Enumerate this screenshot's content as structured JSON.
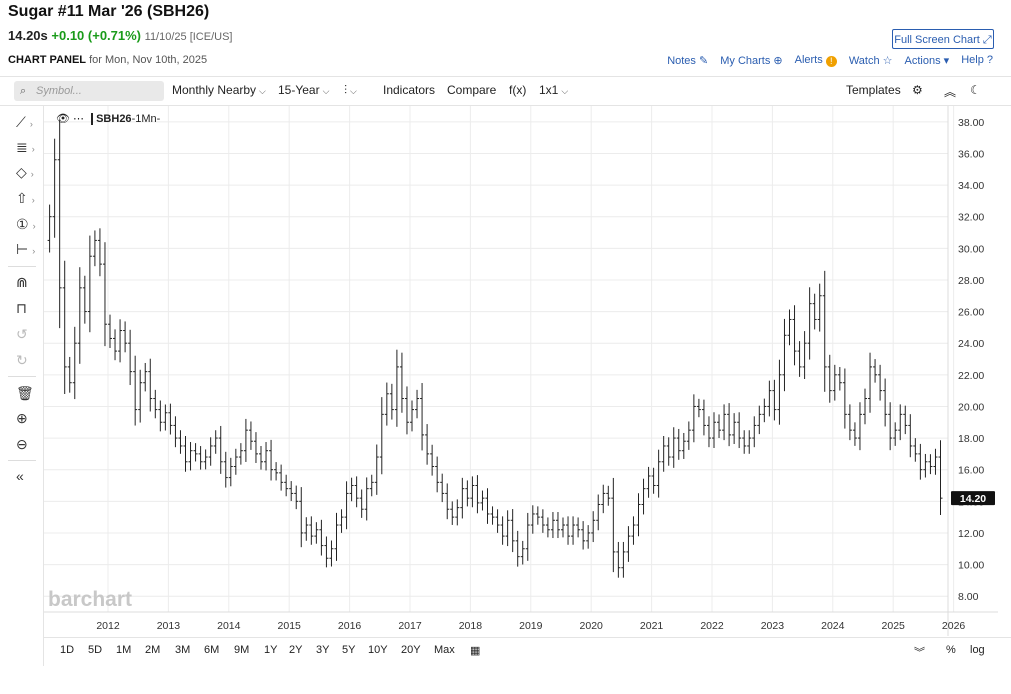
{
  "header": {
    "title": "Sugar #11 Mar '26 (SBH26)",
    "price": "14.20s",
    "change": "+0.10 (+0.71%)",
    "meta": "11/10/25 [ICE/US]",
    "fullscreen_label": "Full Screen Chart ⤢",
    "panel_label": "CHART PANEL",
    "panel_date": "for Mon, Nov 10th, 2025"
  },
  "links": [
    {
      "label": "Notes",
      "icon": "✎"
    },
    {
      "label": "My Charts",
      "icon": "⊕"
    },
    {
      "label": "Alerts",
      "icon": "!"
    },
    {
      "label": "Watch",
      "icon": "☆"
    },
    {
      "label": "Actions",
      "icon": "▾"
    },
    {
      "label": "Help",
      "icon": "?"
    }
  ],
  "toolbar": {
    "search_placeholder": "Symbol...",
    "interval": "Monthly Nearby",
    "period": "15-Year",
    "bar_type_icon": "ohlc-bars-icon",
    "indicators": "Indicators",
    "compare": "Compare",
    "fx": "f(x)",
    "layout": "1x1",
    "templates": "Templates"
  },
  "legend": {
    "symbol": "SBH26",
    "interval": "-1Mn-"
  },
  "logo": "barchart",
  "ranges": [
    "1D",
    "5D",
    "1M",
    "2M",
    "3M",
    "6M",
    "9M",
    "1Y",
    "2Y",
    "3Y",
    "5Y",
    "10Y",
    "20Y",
    "Max"
  ],
  "bottom_right": {
    "pct": "%",
    "log": "log"
  },
  "colors": {
    "bar": "#222222",
    "grid": "#ececec",
    "accent": "#2a5db0",
    "up": "#1a9b1a"
  },
  "chart_data": {
    "type": "ohlc",
    "interval": "monthly",
    "ylim": [
      7,
      39
    ],
    "y_ticks": [
      "38.00",
      "36.00",
      "34.00",
      "32.00",
      "30.00",
      "28.00",
      "26.00",
      "24.00",
      "22.00",
      "20.00",
      "18.00",
      "16.00",
      "14.00",
      "12.00",
      "10.00",
      "8.00"
    ],
    "x_ticks": [
      "2012",
      "2013",
      "2014",
      "2015",
      "2016",
      "2017",
      "2018",
      "2019",
      "2020",
      "2021",
      "2022",
      "2023",
      "2024",
      "2025",
      "2026"
    ],
    "x_start": "2011-01",
    "last_price_label": "14.20",
    "closes": [
      32.0,
      35.6,
      27.5,
      22.5,
      21.5,
      24.0,
      27.5,
      26.0,
      29.5,
      30.5,
      29.0,
      25.2,
      24.3,
      23.5,
      24.8,
      24.0,
      22.2,
      19.8,
      21.5,
      22.2,
      20.5,
      19.8,
      19.0,
      19.6,
      18.8,
      18.0,
      17.5,
      16.5,
      17.2,
      17.0,
      16.5,
      16.8,
      17.5,
      18.0,
      16.5,
      15.5,
      16.2,
      16.8,
      17.2,
      18.5,
      17.8,
      17.0,
      16.5,
      17.2,
      16.0,
      15.8,
      15.2,
      14.8,
      14.5,
      14.0,
      12.0,
      12.5,
      11.8,
      12.2,
      11.2,
      10.4,
      11.0,
      12.5,
      13.0,
      14.5,
      15.0,
      14.2,
      13.5,
      14.8,
      15.2,
      16.8,
      19.5,
      20.8,
      19.8,
      22.5,
      20.5,
      19.0,
      19.8,
      20.5,
      18.2,
      17.0,
      16.2,
      15.2,
      14.5,
      13.5,
      13.0,
      13.6,
      14.8,
      14.2,
      15.0,
      13.9,
      14.2,
      13.2,
      13.0,
      12.5,
      11.8,
      12.8,
      11.5,
      10.5,
      11.0,
      12.5,
      13.2,
      13.0,
      12.5,
      12.2,
      12.8,
      12.2,
      12.5,
      11.8,
      12.5,
      12.2,
      11.5,
      12.0,
      12.8,
      13.8,
      14.5,
      14.2,
      10.8,
      9.8,
      10.8,
      11.8,
      12.5,
      13.8,
      14.8,
      15.6,
      15.0,
      16.5,
      17.5,
      16.8,
      18.0,
      17.2,
      17.8,
      18.5,
      20.0,
      19.8,
      18.8,
      18.0,
      19.0,
      18.5,
      19.5,
      18.2,
      19.0,
      18.0,
      17.5,
      18.0,
      18.8,
      19.5,
      20.0,
      21.0,
      19.8,
      22.0,
      24.5,
      25.5,
      23.5,
      22.5,
      24.0,
      26.5,
      25.5,
      27.0,
      22.5,
      21.0,
      22.0,
      21.5,
      19.5,
      18.5,
      18.0,
      19.5,
      20.5,
      22.5,
      22.0,
      21.0,
      19.5,
      18.0,
      18.5,
      19.5,
      18.8,
      17.5,
      17.0,
      16.0,
      16.5,
      16.2,
      16.8,
      14.2
    ]
  }
}
